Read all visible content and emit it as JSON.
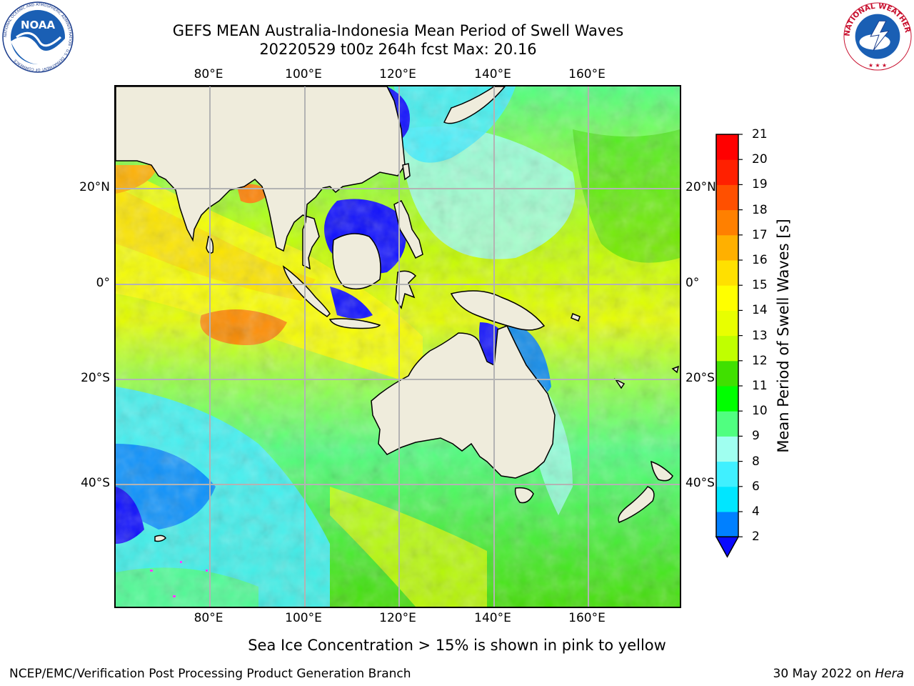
{
  "header": {
    "title_line1": "GEFS MEAN Australia-Indonesia Mean Period of Swell Waves",
    "title_line2": "20220529 t00z 264h fcst   Max: 20.16"
  },
  "map": {
    "lon_labels": [
      "80°E",
      "100°E",
      "120°E",
      "140°E",
      "160°E"
    ],
    "lat_labels": [
      "20°N",
      "0°",
      "20°S",
      "40°S"
    ],
    "lon_range": [
      60,
      180
    ],
    "lat_range": [
      -68,
      42
    ]
  },
  "colorbar": {
    "label": "Mean Period of Swell Waves [s]",
    "ticks": [
      "2",
      "4",
      "6",
      "8",
      "9",
      "10",
      "11",
      "12",
      "13",
      "14",
      "15",
      "16",
      "17",
      "18",
      "19",
      "20",
      "21"
    ],
    "colors": [
      "#0a0aff",
      "#0080ff",
      "#00e6ff",
      "#40f0ff",
      "#a0fff0",
      "#50ff80",
      "#00ff00",
      "#40e000",
      "#c0ff00",
      "#e8ff00",
      "#ffff00",
      "#ffe000",
      "#ffb000",
      "#ff8000",
      "#ff5000",
      "#ff2000",
      "#ff0000"
    ]
  },
  "footer": {
    "ice_note": "Sea Ice Concentration > 15% is shown in pink to yellow",
    "credit_left": "NCEP/EMC/Verification Post Processing Product Generation Branch",
    "credit_right_date": "30 May 2022 on ",
    "credit_right_machine": "Hera"
  },
  "logos": {
    "noaa": "NOAA",
    "noaa_ring_text": "NATIONAL OCEANIC AND ATMOSPHERIC ADMINISTRATION · U.S. DEPARTMENT OF COMMERCE",
    "nws_ring_text": "NATIONAL WEATHER SERVICE"
  }
}
